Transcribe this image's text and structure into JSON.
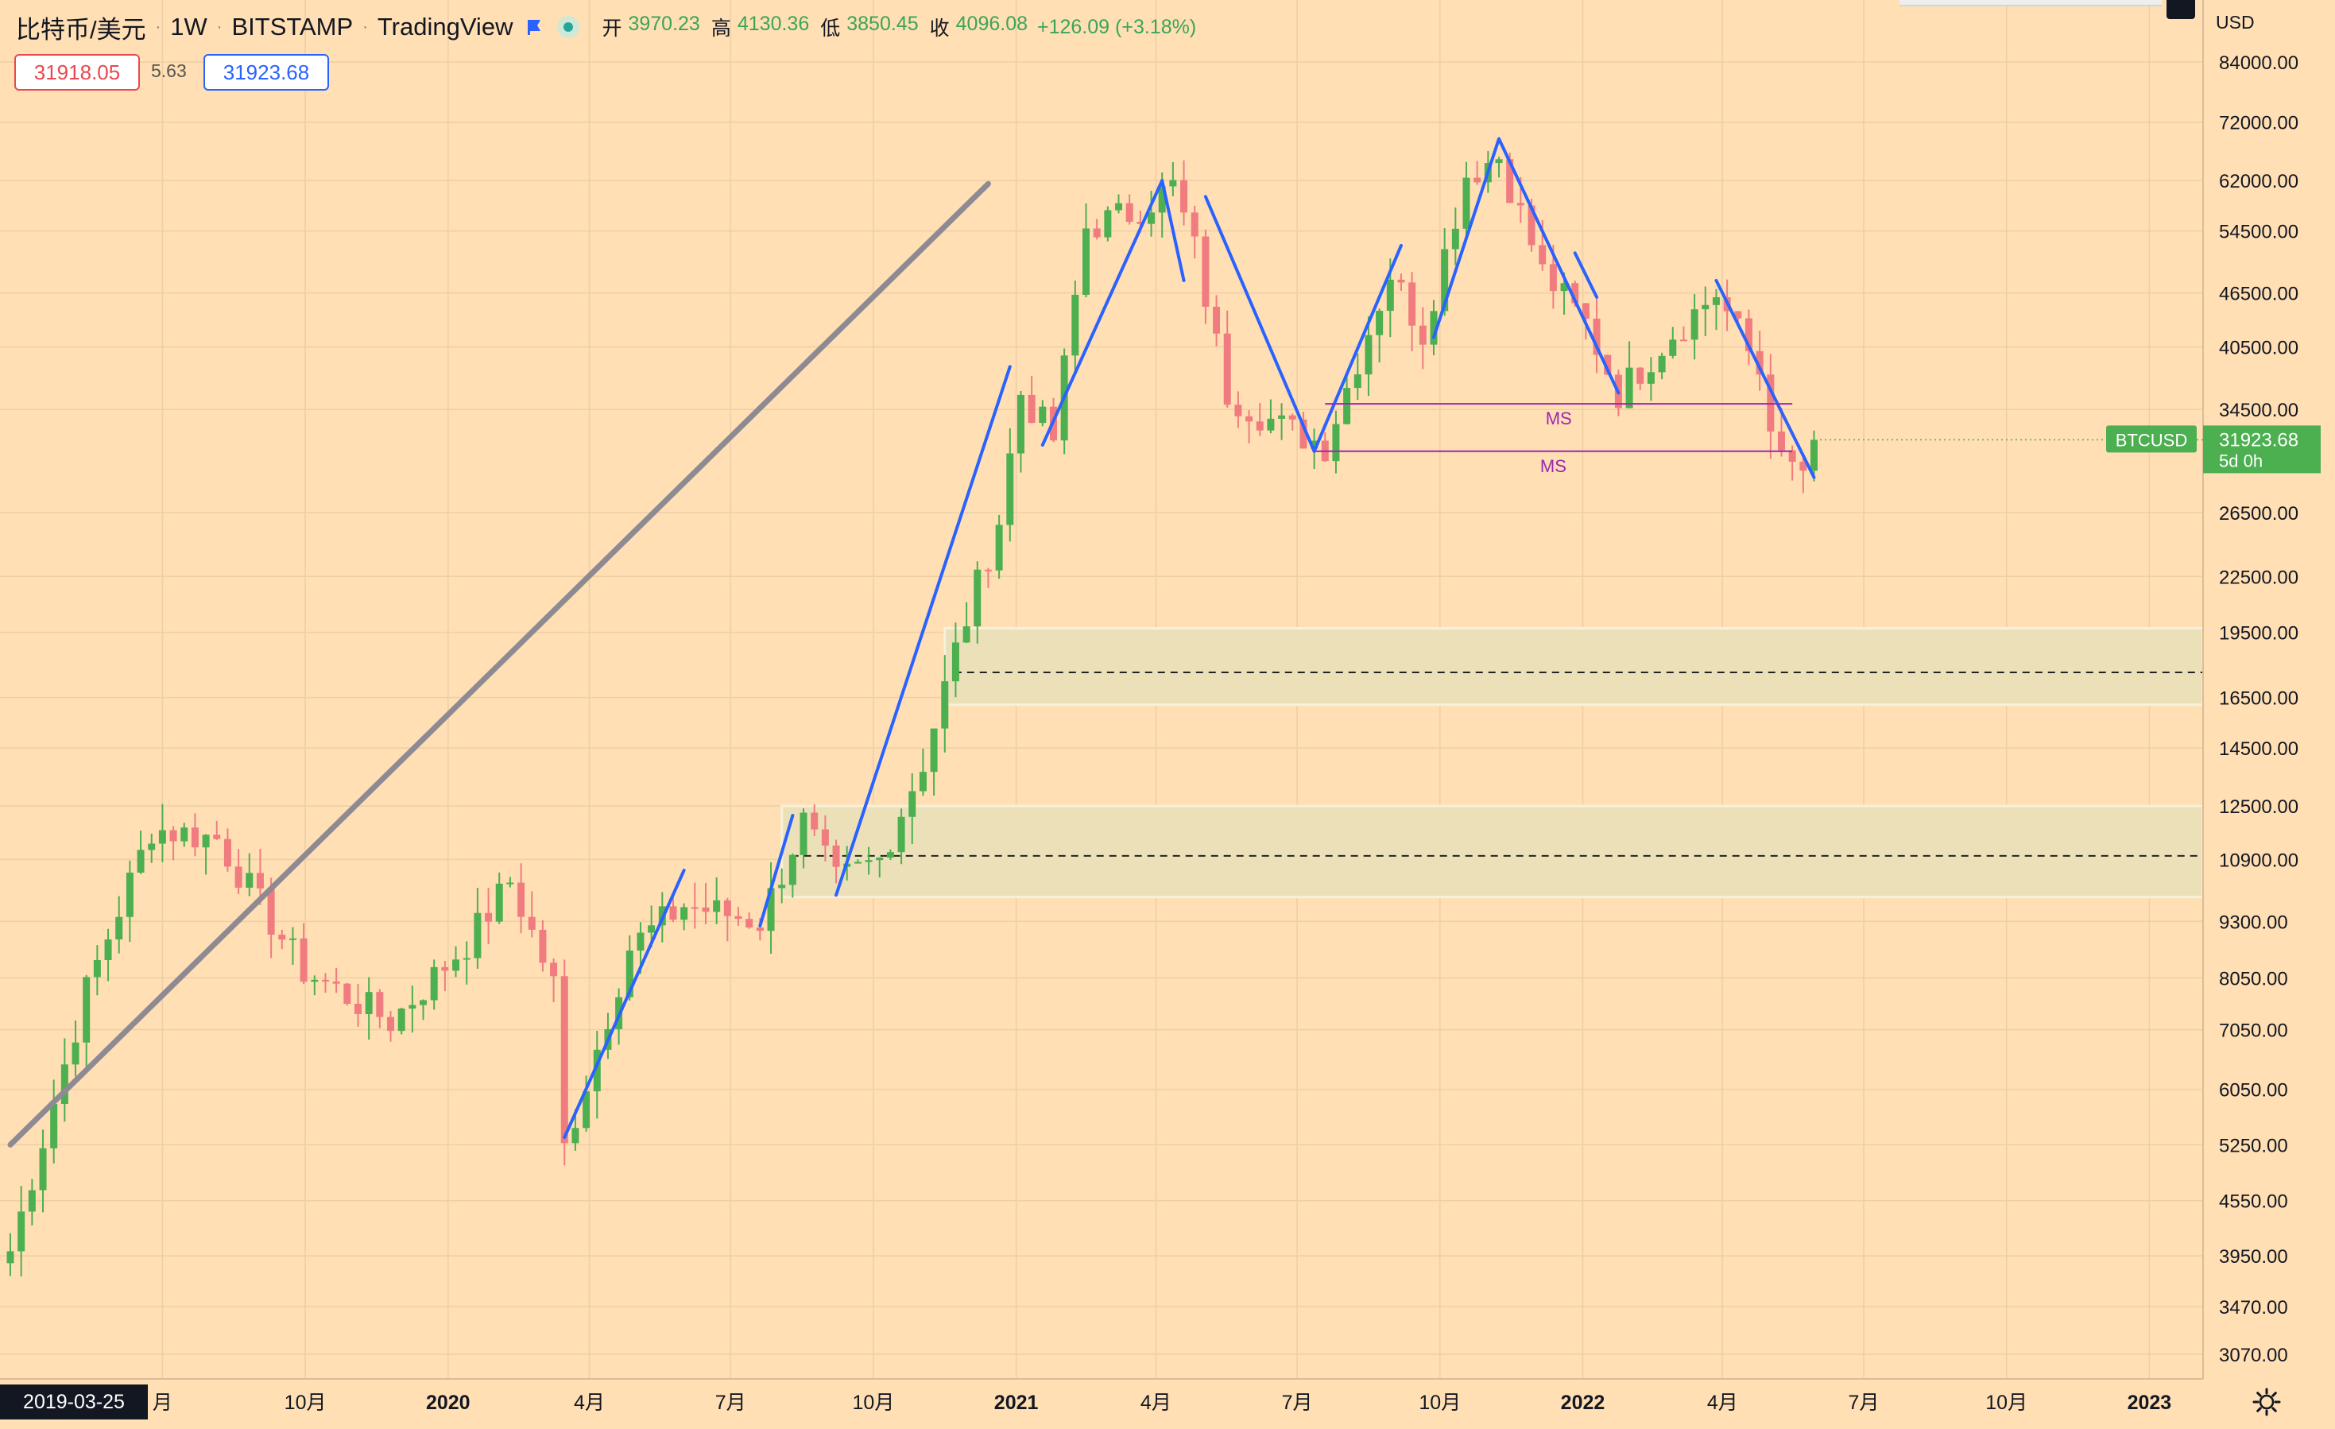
{
  "header": {
    "symbol": "比特币/美元",
    "interval": "1W",
    "exchange": "BITSTAMP",
    "provider": "TradingView",
    "ohlc": [
      {
        "label": "开",
        "value": "3970.23"
      },
      {
        "label": "高",
        "value": "4130.36"
      },
      {
        "label": "低",
        "value": "3850.45"
      },
      {
        "label": "收",
        "value": "4096.08"
      }
    ],
    "change": "+126.09 (+3.18%)"
  },
  "trade": {
    "sell": "31918.05",
    "spread": "5.63",
    "buy": "31923.68"
  },
  "axis": {
    "currency": "USD",
    "cursor_date": "2019-03-25"
  },
  "price_badge": {
    "symbol": "BTCUSD",
    "price": "31923.68",
    "countdown": "5d 0h"
  },
  "colors": {
    "background": "#FFDFB3",
    "up": "#4CAF50",
    "down": "#F07C80",
    "trend": "#2962FF",
    "ms_line": "#9C27B0",
    "diag": "#8E8A94",
    "zone": "#EBE0B8"
  },
  "chart_data": {
    "type": "candlestick",
    "interval": "1W",
    "y_scale": "log",
    "x_range": [
      "2019-03-25",
      "2023-01-09"
    ],
    "y_ticks": [
      84000,
      72000,
      62000,
      54500,
      46500,
      40500,
      34500,
      26500,
      22500,
      19500,
      16500,
      14500,
      12500,
      10900,
      9300,
      8050,
      7050,
      6050,
      5250,
      4550,
      3950,
      3470,
      3070
    ],
    "y_tick_labels": [
      "84000.00",
      "72000.00",
      "62000.00",
      "54500.00",
      "46500.00",
      "40500.00",
      "34500.00",
      "26500.00",
      "22500.00",
      "19500.00",
      "16500.00",
      "14500.00",
      "12500.00",
      "10900.00",
      "9300.00",
      "8050.00",
      "7050.00",
      "6050.00",
      "5250.00",
      "4550.00",
      "3950.00",
      "3470.00",
      "3070.00"
    ],
    "x_ticks": [
      {
        "date": "2019-07-01",
        "label": "月",
        "bold": false
      },
      {
        "date": "2019-10-01",
        "label": "10月",
        "bold": false
      },
      {
        "date": "2020-01-01",
        "label": "2020",
        "bold": true
      },
      {
        "date": "2020-04-01",
        "label": "4月",
        "bold": false
      },
      {
        "date": "2020-07-01",
        "label": "7月",
        "bold": false
      },
      {
        "date": "2020-10-01",
        "label": "10月",
        "bold": false
      },
      {
        "date": "2021-01-01",
        "label": "2021",
        "bold": true
      },
      {
        "date": "2021-04-01",
        "label": "4月",
        "bold": false
      },
      {
        "date": "2021-07-01",
        "label": "7月",
        "bold": false
      },
      {
        "date": "2021-10-01",
        "label": "10月",
        "bold": false
      },
      {
        "date": "2022-01-01",
        "label": "2022",
        "bold": true
      },
      {
        "date": "2022-04-01",
        "label": "4月",
        "bold": false
      },
      {
        "date": "2022-07-01",
        "label": "7月",
        "bold": false
      },
      {
        "date": "2022-10-01",
        "label": "10月",
        "bold": false
      },
      {
        "date": "2023-01-01",
        "label": "2023",
        "bold": true
      }
    ],
    "last_close": 31923.68,
    "waypoints": [
      [
        "2019-03-25",
        4000
      ],
      [
        "2019-05-13",
        7800
      ],
      [
        "2019-06-24",
        11800
      ],
      [
        "2019-08-05",
        11500
      ],
      [
        "2019-09-30",
        8200
      ],
      [
        "2019-11-25",
        7200
      ],
      [
        "2020-01-13",
        8800
      ],
      [
        "2020-02-10",
        10300
      ],
      [
        "2020-03-09",
        7900
      ],
      [
        "2020-03-16",
        5200
      ],
      [
        "2020-04-27",
        8700
      ],
      [
        "2020-06-01",
        9700
      ],
      [
        "2020-07-20",
        9300
      ],
      [
        "2020-08-17",
        12000
      ],
      [
        "2020-09-07",
        10300
      ],
      [
        "2020-10-05",
        10900
      ],
      [
        "2020-11-02",
        14000
      ],
      [
        "2020-11-23",
        18600
      ],
      [
        "2020-12-21",
        26000
      ],
      [
        "2021-01-04",
        36000
      ],
      [
        "2021-01-25",
        32000
      ],
      [
        "2021-02-15",
        55000
      ],
      [
        "2021-03-15",
        57000
      ],
      [
        "2021-04-12",
        61000
      ],
      [
        "2021-04-26",
        52000
      ],
      [
        "2021-05-17",
        36000
      ],
      [
        "2021-06-21",
        33000
      ],
      [
        "2021-07-19",
        31500
      ],
      [
        "2021-08-30",
        49000
      ],
      [
        "2021-09-20",
        42000
      ],
      [
        "2021-10-18",
        63000
      ],
      [
        "2021-11-08",
        66000
      ],
      [
        "2021-12-06",
        49000
      ],
      [
        "2022-01-03",
        43000
      ],
      [
        "2022-01-24",
        36000
      ],
      [
        "2022-02-28",
        42000
      ],
      [
        "2022-03-28",
        46500
      ],
      [
        "2022-04-25",
        38000
      ],
      [
        "2022-05-09",
        30000
      ],
      [
        "2022-05-23",
        29500
      ],
      [
        "2022-05-30",
        31923.68
      ]
    ],
    "trend_lines": [
      {
        "from": [
          "2020-03-16",
          5350
        ],
        "to": [
          "2020-06-01",
          10600
        ]
      },
      {
        "from": [
          "2020-07-20",
          9200
        ],
        "to": [
          "2020-08-10",
          12200
        ]
      },
      {
        "from": [
          "2020-09-07",
          9950
        ],
        "to": [
          "2020-12-28",
          38500
        ]
      },
      {
        "from": [
          "2021-01-18",
          31500
        ],
        "to": [
          "2021-04-05",
          62000
        ]
      },
      {
        "from": [
          "2021-04-05",
          62000
        ],
        "to": [
          "2021-04-19",
          48000
        ]
      },
      {
        "from": [
          "2021-05-03",
          59500
        ],
        "to": [
          "2021-07-12",
          31000
        ]
      },
      {
        "from": [
          "2021-07-12",
          31000
        ],
        "to": [
          "2021-09-06",
          52500
        ]
      },
      {
        "from": [
          "2021-09-27",
          41500
        ],
        "to": [
          "2021-11-08",
          69000
        ]
      },
      {
        "from": [
          "2021-11-08",
          69000
        ],
        "to": [
          "2022-01-24",
          36000
        ]
      },
      {
        "from": [
          "2021-12-27",
          51500
        ],
        "to": [
          "2022-01-10",
          46000
        ]
      },
      {
        "from": [
          "2022-03-28",
          48000
        ],
        "to": [
          "2022-05-30",
          29000
        ]
      }
    ],
    "diagonal": {
      "from": [
        "2019-03-25",
        5250
      ],
      "to": [
        "2020-12-14",
        61500
      ]
    },
    "ms_lines": [
      {
        "from": "2021-07-19",
        "to": "2022-05-16",
        "y": 35000,
        "label": "MS"
      },
      {
        "from": "2021-07-12",
        "to": "2022-05-16",
        "y": 31000,
        "label": "MS"
      }
    ],
    "zones": [
      {
        "from": "2020-11-16",
        "y1": 16200,
        "y2": 19700,
        "dash_y": 17600
      },
      {
        "from": "2020-08-03",
        "y1": 9900,
        "y2": 12500,
        "dash_y": 11000
      }
    ]
  }
}
